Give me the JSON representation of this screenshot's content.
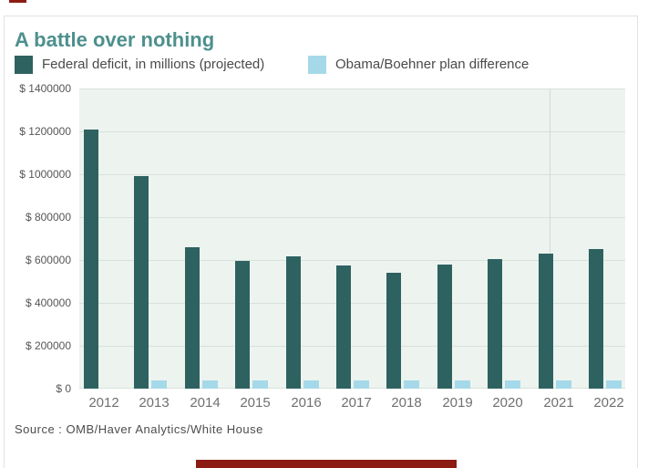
{
  "header": {
    "title": "A battle over nothing"
  },
  "legend": [
    {
      "label": "Federal deficit, in millions (projected)",
      "color": "#2e6261"
    },
    {
      "label": "Obama/Boehner plan difference",
      "color": "#a5d9e9"
    }
  ],
  "source": "Source : OMB/Haver Analytics/White House",
  "artifacts": {
    "clipped_element_color": "#8c1b13"
  },
  "chart_data": {
    "type": "bar",
    "title": "A battle over nothing",
    "categories": [
      "2012",
      "2013",
      "2014",
      "2015",
      "2016",
      "2017",
      "2018",
      "2019",
      "2020",
      "2021",
      "2022"
    ],
    "series": [
      {
        "name": "Federal deficit, in millions (projected)",
        "color": "#2e6261",
        "values": [
          1210000,
          990000,
          660000,
          595000,
          615000,
          575000,
          540000,
          580000,
          605000,
          630000,
          650000
        ]
      },
      {
        "name": "Obama/Boehner plan difference",
        "color": "#a5d9e9",
        "values": [
          0,
          40000,
          40000,
          40000,
          40000,
          40000,
          40000,
          40000,
          40000,
          40000,
          40000
        ]
      }
    ],
    "ylabel": "",
    "xlabel": "",
    "ylim": [
      0,
      1400000
    ],
    "y_tick_labels": [
      "$ 1400000",
      "$ 1200000",
      "$ 1000000",
      "$ 800000",
      "$ 600000",
      "$ 400000",
      "$ 200000",
      "$ 0"
    ],
    "grid": "horizontal",
    "vertical_divider_between": [
      "2020",
      "2021"
    ],
    "legend_position": "top",
    "plot_background": "#edf3ef",
    "source": "Source : OMB/Haver Analytics/White House"
  }
}
